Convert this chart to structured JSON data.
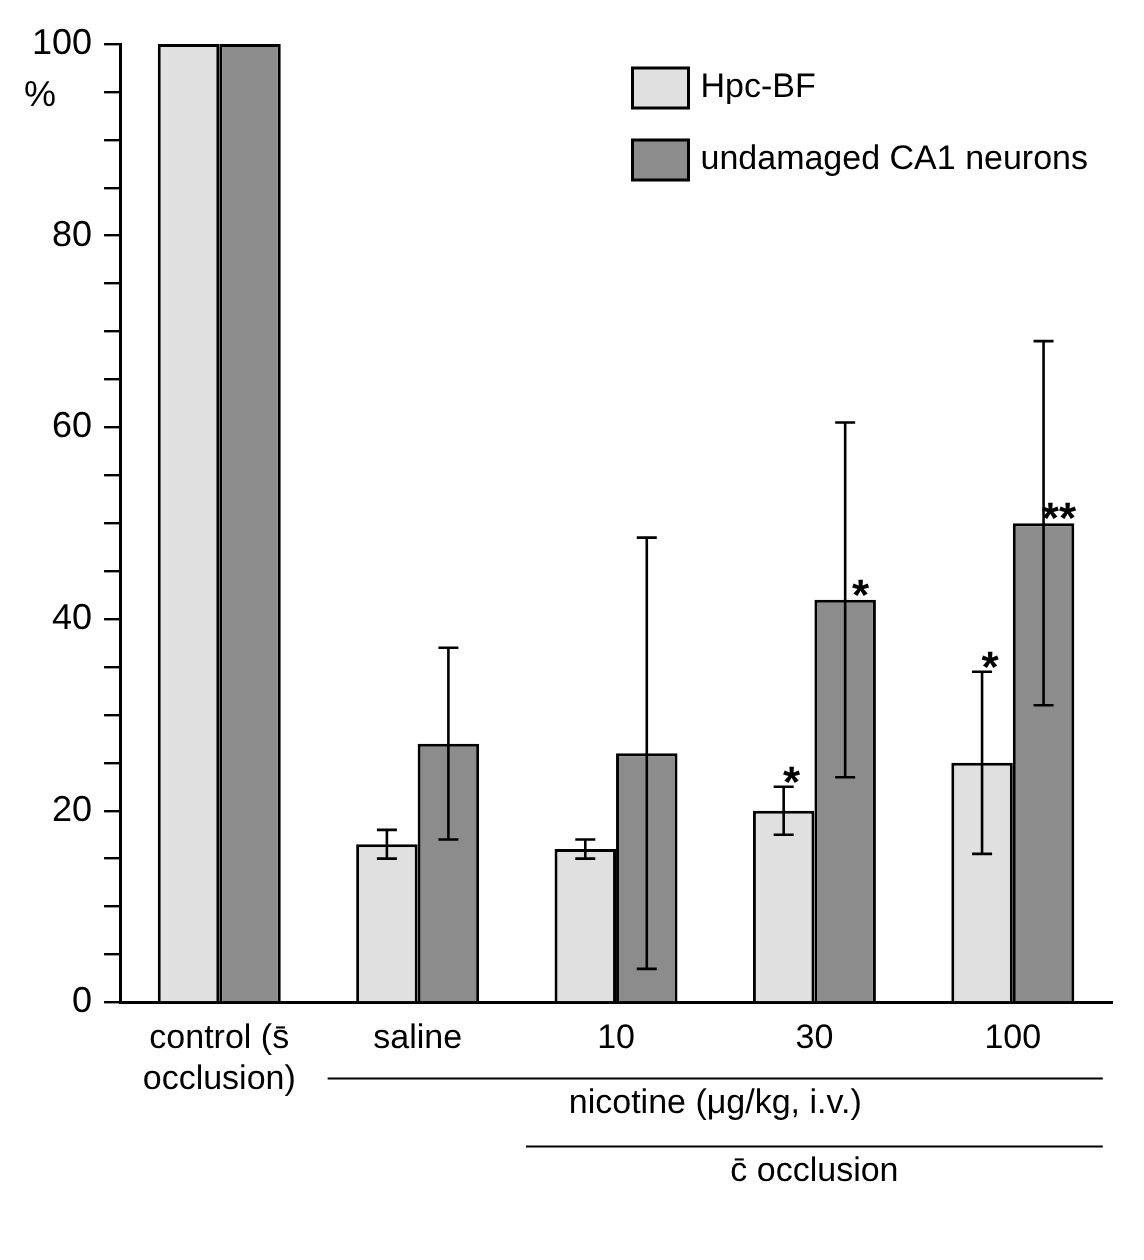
{
  "chart_data": {
    "type": "bar",
    "ylabel": "%",
    "categories": [
      "control (s̄ occlusion)",
      "saline",
      "10",
      "30",
      "100"
    ],
    "series": [
      {
        "name": "Hpc-BF",
        "color": "#e0e0e0",
        "values": [
          100,
          16.5,
          16,
          20,
          25
        ],
        "errors": [
          null,
          1.5,
          1,
          2.5,
          9.5
        ]
      },
      {
        "name": "undamaged CA1 neurons",
        "color": "#8c8c8c",
        "values": [
          100,
          27,
          26,
          42,
          50
        ],
        "errors": [
          null,
          10,
          22.5,
          18.5,
          19
        ]
      }
    ],
    "ylim": [
      0,
      100
    ],
    "yticks": [
      0,
      {
        "value": 5,
        "label": null
      },
      {
        "value": 10,
        "label": null
      },
      {
        "value": 15,
        "label": null
      },
      20,
      {
        "value": 25,
        "label": null
      },
      {
        "value": 30,
        "label": null
      },
      {
        "value": 35,
        "label": null
      },
      40,
      {
        "value": 45,
        "label": null
      },
      {
        "value": 50,
        "label": null
      },
      {
        "value": 55,
        "label": null
      },
      60,
      {
        "value": 65,
        "label": null
      },
      {
        "value": 70,
        "label": null
      },
      {
        "value": 75,
        "label": null
      },
      80,
      {
        "value": 85,
        "label": null
      },
      {
        "value": 90,
        "label": null
      },
      {
        "value": 95,
        "label": null
      },
      100
    ],
    "grid": false,
    "legend": "top right",
    "annotations": [
      "nicotine (μg/kg, i.v.)",
      "c̄ occlusion",
      {
        "text": "*",
        "x": "30",
        "y": 22.5
      },
      {
        "text": "*",
        "x": "30",
        "y": 42
      },
      {
        "text": "*",
        "x": "100",
        "y": 34.5
      },
      {
        "text": "**",
        "x": "100",
        "y": 50
      }
    ]
  }
}
